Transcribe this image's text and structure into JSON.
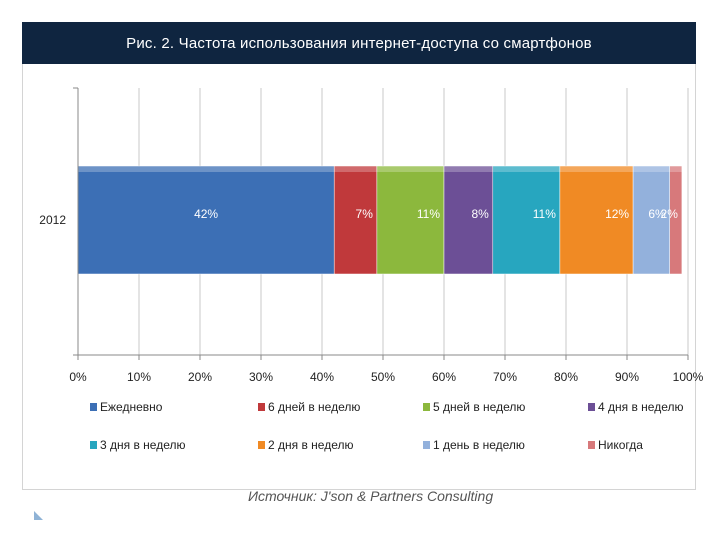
{
  "title": "Рис. 2. Частота использования интернет-доступа со смартфонов",
  "source": "Источник: J'son & Partners Consulting",
  "chart_data": {
    "type": "bar",
    "orientation": "horizontal",
    "stacked": true,
    "categories": [
      "2012"
    ],
    "xlim": [
      0,
      100
    ],
    "xticks": [
      "0%",
      "10%",
      "20%",
      "30%",
      "40%",
      "50%",
      "60%",
      "70%",
      "80%",
      "90%",
      "100%"
    ],
    "xtick_values": [
      0,
      10,
      20,
      30,
      40,
      50,
      60,
      70,
      80,
      90,
      100
    ],
    "grid": true,
    "legend_position": "bottom",
    "series": [
      {
        "name": "Ежедневно",
        "values": [
          42
        ],
        "label": "42%",
        "color": "#3c6fb5"
      },
      {
        "name": "6 дней в неделю",
        "values": [
          7
        ],
        "label": "7%",
        "color": "#c0393b"
      },
      {
        "name": "5 дней в неделю",
        "values": [
          11
        ],
        "label": "11%",
        "color": "#8cb83d"
      },
      {
        "name": "4 дня в неделю",
        "values": [
          8
        ],
        "label": "8%",
        "color": "#6c4f96"
      },
      {
        "name": "3 дня в неделю",
        "values": [
          11
        ],
        "label": "11%",
        "color": "#27a6bf"
      },
      {
        "name": "2 дня в неделю",
        "values": [
          12
        ],
        "label": "12%",
        "color": "#f08a24"
      },
      {
        "name": "1 день в неделю",
        "values": [
          6
        ],
        "label": "6%",
        "color": "#93b1dc"
      },
      {
        "name": "Никогда",
        "values": [
          2
        ],
        "label": "2%",
        "color": "#d7797b"
      }
    ]
  }
}
